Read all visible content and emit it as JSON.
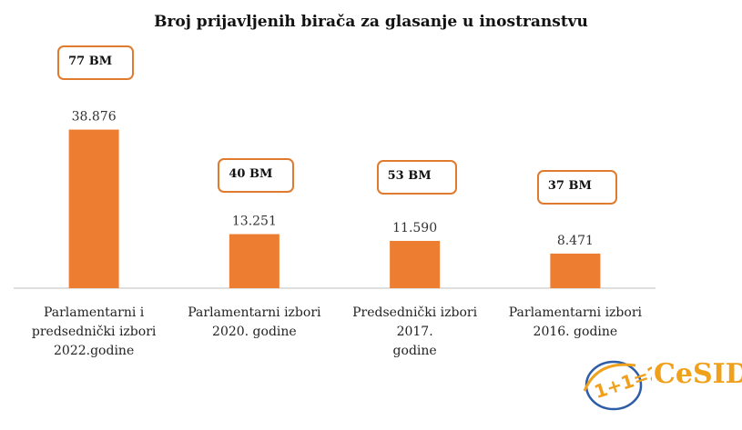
{
  "title": "Broj prijavljenih birača za glasanje u inostranstvu",
  "colors": {
    "bar": "#ED7D31",
    "box_border": "#E07A2E",
    "axis": "#BFBFBF",
    "logo_blue": "#2E5DA8",
    "logo_orange": "#F0A11C"
  },
  "chart_data": {
    "type": "bar",
    "title": "Broj prijavljenih birača za glasanje u inostranstvu",
    "categories": [
      "Parlamentarni i predsednički izbori 2022.godine",
      "Parlamentarni izbori 2020. godine",
      "Predsednički izbori 2017. godine",
      "Parlamentarni izbori 2016. godine"
    ],
    "category_lines": [
      [
        "Parlamentarni i",
        "predsednički izbori",
        "2022.godine"
      ],
      [
        "Parlamentarni izbori",
        "2020. godine"
      ],
      [
        "Predsednički izbori 2017.",
        "godine"
      ],
      [
        "Parlamentarni izbori",
        "2016. godine"
      ]
    ],
    "values": [
      38876,
      13251,
      11590,
      8471
    ],
    "value_labels": [
      "38.876",
      "13.251",
      "11.590",
      "8.471"
    ],
    "annotations": [
      "77 BM",
      "40 BM",
      "53 BM",
      "37 BM"
    ],
    "ylim": [
      0,
      39000
    ],
    "xlabel": "",
    "ylabel": "",
    "grid": false,
    "legend": "none"
  },
  "logo": {
    "equation": "1+1=2",
    "name": "CeSID"
  }
}
